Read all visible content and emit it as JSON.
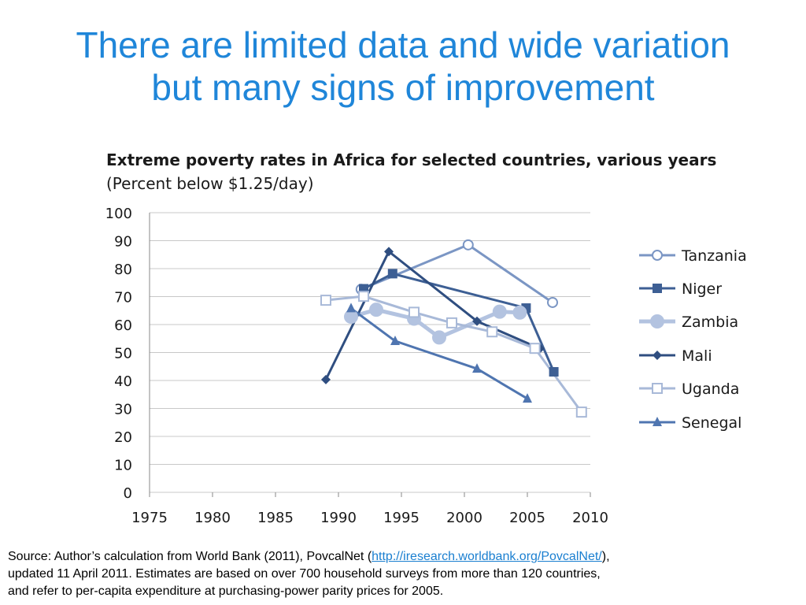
{
  "slide": {
    "title_line1": "There are limited data and wide variation",
    "title_line2": "but many signs of improvement"
  },
  "source": {
    "prefix": "Source:  Author’s calculation from World Bank (2011), PovcalNet  (",
    "link": "http://iresearch.worldbank.org/PovcalNet/",
    "suffix_line1": "),",
    "line2": "updated 11 April 2011.  Estimates are based on over 700 household surveys from more than 120 countries,",
    "line3": "and refer to per-capita expenditure at purchasing-power parity prices for 2005."
  },
  "chart_data": {
    "type": "line",
    "title": "Extreme poverty rates in Africa for selected countries, various years",
    "subtitle": "(Percent below $1.25/day)",
    "xlim": [
      1975,
      2010
    ],
    "ylim": [
      0,
      100
    ],
    "x_ticks": [
      1975,
      1980,
      1985,
      1990,
      1995,
      2000,
      2005,
      2010
    ],
    "y_ticks": [
      0,
      10,
      20,
      30,
      40,
      50,
      60,
      70,
      80,
      90,
      100
    ],
    "grid": "horizontal",
    "legend": "right",
    "series": [
      {
        "name": "Tanzania",
        "color": "#7b96c4",
        "marker": "open-circle",
        "width": 3,
        "points": [
          [
            1991.8,
            72.6
          ],
          [
            2000.3,
            88.5
          ],
          [
            2007,
            67.9
          ]
        ]
      },
      {
        "name": "Niger",
        "color": "#3d5f94",
        "marker": "square",
        "width": 3,
        "points": [
          [
            1992,
            72.8
          ],
          [
            1994.3,
            78.2
          ],
          [
            2004.9,
            65.9
          ],
          [
            2007.1,
            43.1
          ]
        ]
      },
      {
        "name": "Zambia",
        "color": "#b3c3e0",
        "marker": "circle",
        "width": 5,
        "points": [
          [
            1991,
            62.8
          ],
          [
            1993,
            65.3
          ],
          [
            1996,
            62.1
          ],
          [
            1998,
            55.4
          ],
          [
            2002.8,
            64.6
          ],
          [
            2004.4,
            64.3
          ]
        ]
      },
      {
        "name": "Mali",
        "color": "#2f4e80",
        "marker": "diamond",
        "width": 3,
        "points": [
          [
            1989,
            40.3
          ],
          [
            1994,
            86.1
          ],
          [
            2001,
            61.2
          ],
          [
            2006,
            51.4
          ]
        ]
      },
      {
        "name": "Uganda",
        "color": "#a8b9d8",
        "marker": "open-square",
        "width": 3,
        "points": [
          [
            1989,
            68.7
          ],
          [
            1992,
            70.1
          ],
          [
            1996,
            64.4
          ],
          [
            1999,
            60.6
          ],
          [
            2002.2,
            57.4
          ],
          [
            2005.6,
            51.5
          ],
          [
            2009.3,
            28.7
          ]
        ]
      },
      {
        "name": "Senegal",
        "color": "#4f75b0",
        "marker": "triangle",
        "width": 3,
        "points": [
          [
            1991,
            65.8
          ],
          [
            1994.5,
            54.1
          ],
          [
            2001,
            44.2
          ],
          [
            2005,
            33.5
          ]
        ]
      }
    ]
  }
}
